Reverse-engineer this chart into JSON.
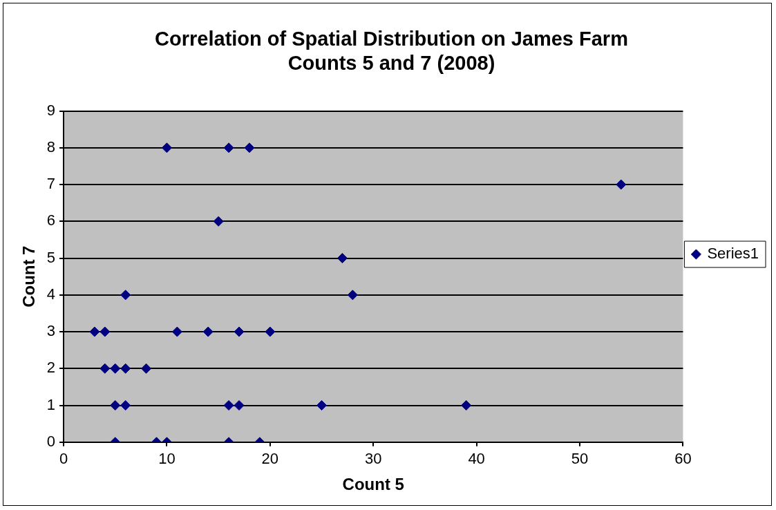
{
  "chart_data": {
    "type": "scatter",
    "title": "Correlation of Spatial Distribution on James Farm\nCounts 5 and 7 (2008)",
    "xlabel": "Count 5",
    "ylabel": "Count 7",
    "series": [
      {
        "name": "Series1",
        "color": "#000080",
        "x": [
          10,
          16,
          18,
          54,
          15,
          27,
          6,
          28,
          3,
          4,
          11,
          14,
          17,
          20,
          4,
          5,
          6,
          8,
          5,
          6,
          16,
          17,
          25,
          39,
          5,
          9,
          10,
          16,
          19
        ],
        "values": [
          8,
          8,
          8,
          7,
          6,
          5,
          4,
          4,
          3,
          3,
          3,
          3,
          3,
          3,
          2,
          2,
          2,
          2,
          1,
          1,
          1,
          1,
          1,
          1,
          0,
          0,
          0,
          0,
          0
        ]
      }
    ],
    "xlim": [
      0,
      60
    ],
    "xticks": [
      0,
      10,
      20,
      30,
      40,
      50,
      60
    ],
    "ylim": [
      0,
      9
    ],
    "yticks": [
      0,
      1,
      2,
      3,
      4,
      5,
      6,
      7,
      8,
      9
    ],
    "grid": "y",
    "legend": "right",
    "marker": "diamond"
  }
}
